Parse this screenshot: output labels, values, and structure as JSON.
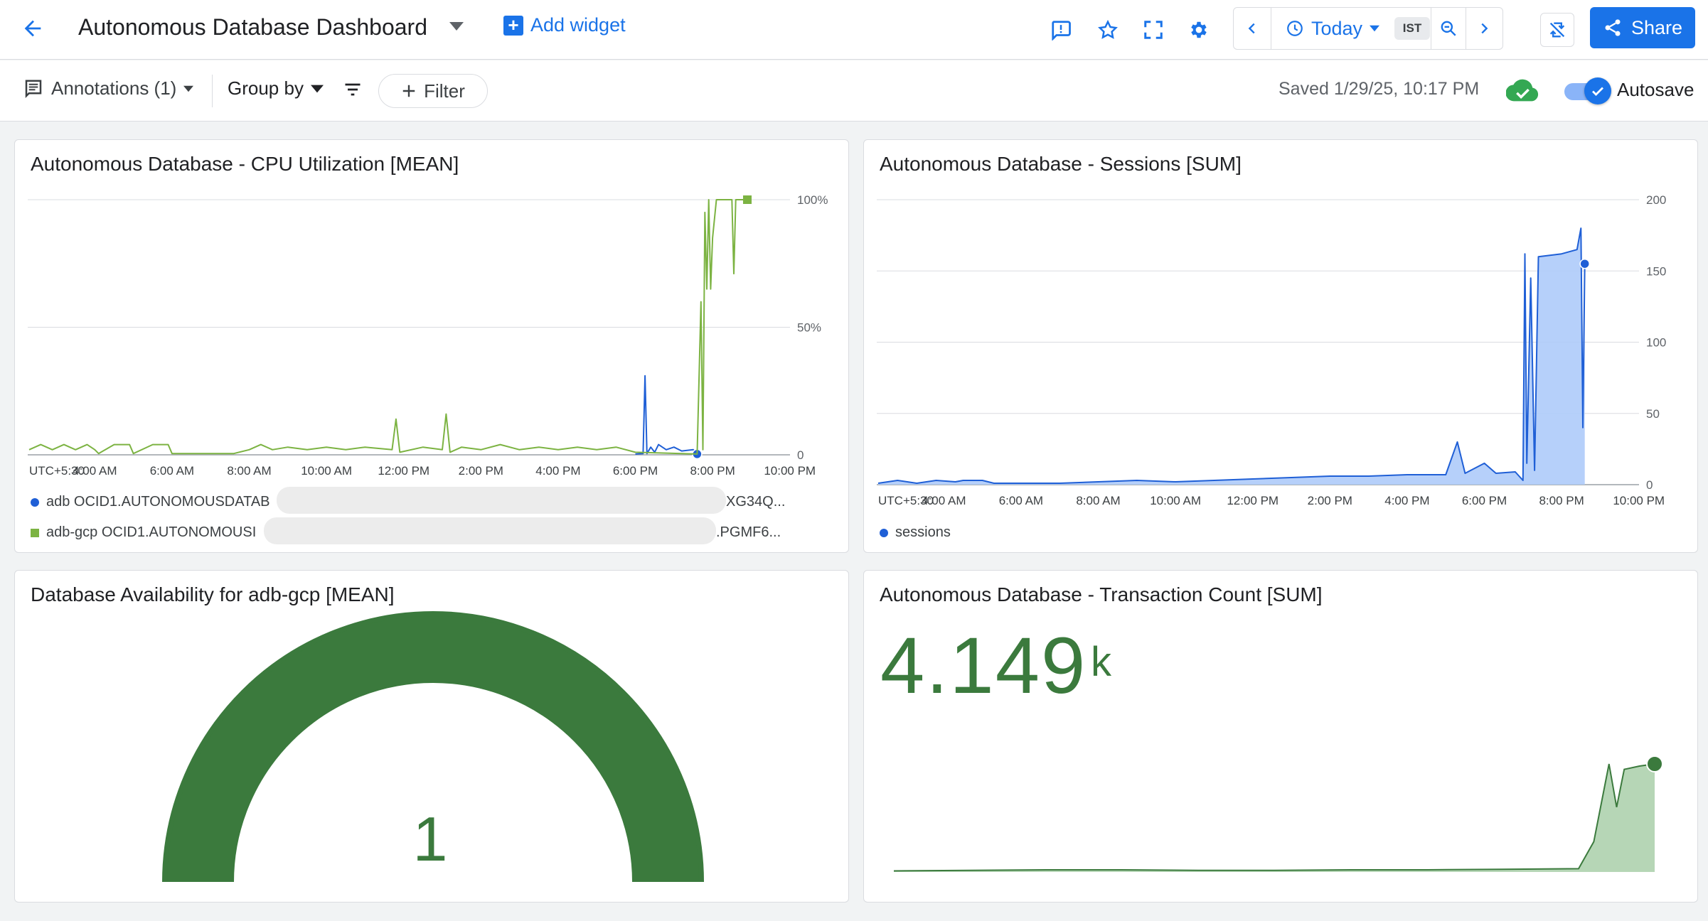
{
  "header": {
    "title": "Autonomous Database Dashboard",
    "add_widget_label": "Add widget",
    "time_range_label": "Today",
    "timezone_chip": "IST",
    "share_label": "Share"
  },
  "toolbar": {
    "annotations_label": "Annotations (1)",
    "group_by_label": "Group by",
    "filter_label": "Filter",
    "saved_text": "Saved 1/29/25, 10:17 PM",
    "autosave_label": "Autosave",
    "autosave_on": true
  },
  "icons": {
    "back": "arrow-left-icon",
    "feedback": "feedback-icon",
    "star": "star-icon",
    "fullscreen": "fullscreen-icon",
    "settings": "gear-icon",
    "clock": "clock-icon",
    "zoom": "zoom-out-icon",
    "link_off": "sync-off-icon",
    "share": "share-icon",
    "cloud": "cloud-done-icon"
  },
  "colors": {
    "accent": "#1a73e8",
    "series_blue": "#1f5fd6",
    "series_green": "#7cb342",
    "metric_green": "#3b7a3d"
  },
  "widgets": {
    "cpu": {
      "title": "Autonomous Database - CPU Utilization [MEAN]",
      "legend": [
        {
          "label_start": "adb OCID1.AUTONOMOUSDATAB",
          "label_end": "XG34Q...",
          "color": "#1f5fd6",
          "marker": "circle"
        },
        {
          "label_start": "adb-gcp OCID1.AUTONOMOUSI",
          "label_end": ".PGMF6...",
          "color": "#7cb342",
          "marker": "square"
        }
      ]
    },
    "sessions": {
      "title": "Autonomous Database - Sessions [SUM]",
      "legend": [
        {
          "label": "sessions",
          "color": "#1f5fd6",
          "marker": "circle"
        }
      ]
    },
    "availability": {
      "title": "Database Availability for adb-gcp [MEAN]",
      "value": "1",
      "gauge_fraction": 1.0
    },
    "transactions": {
      "title": "Autonomous Database - Transaction Count [SUM]",
      "value": "4.149",
      "unit": "k"
    }
  },
  "chart_data": [
    {
      "type": "line",
      "title": "Autonomous Database - CPU Utilization [MEAN]",
      "x_tick_labels": [
        "UTC+5:30",
        "4:00 AM",
        "6:00 AM",
        "8:00 AM",
        "10:00 AM",
        "12:00 PM",
        "2:00 PM",
        "4:00 PM",
        "6:00 PM",
        "8:00 PM",
        "10:00 PM"
      ],
      "y_tick_labels": [
        "100%",
        "50%",
        "0"
      ],
      "ylim": [
        0,
        100
      ],
      "x_hours": [
        2.3,
        22.3
      ],
      "grid": true,
      "series": [
        {
          "name": "adb OCID1.AUTONOMOUSDATAB...XG34Q...",
          "color": "#1f5fd6",
          "points": [
            [
              18.0,
              0.3
            ],
            [
              18.2,
              0.5
            ],
            [
              18.25,
              31
            ],
            [
              18.3,
              0.5
            ],
            [
              18.4,
              3
            ],
            [
              18.5,
              1
            ],
            [
              18.6,
              4
            ],
            [
              18.8,
              2
            ],
            [
              19.0,
              3
            ],
            [
              19.2,
              1.5
            ],
            [
              19.5,
              2
            ],
            [
              19.6,
              0.3
            ]
          ]
        },
        {
          "name": "adb-gcp OCID1.AUTONOMOUSI...PGMF6...",
          "color": "#7cb342",
          "points": [
            [
              2.3,
              2
            ],
            [
              2.6,
              4
            ],
            [
              2.9,
              2
            ],
            [
              3.2,
              4
            ],
            [
              3.5,
              2
            ],
            [
              3.8,
              4
            ],
            [
              4.0,
              2
            ],
            [
              4.1,
              0.5
            ],
            [
              4.5,
              4
            ],
            [
              4.9,
              4
            ],
            [
              5.0,
              0.5
            ],
            [
              5.5,
              4
            ],
            [
              5.9,
              4
            ],
            [
              6.0,
              0.5
            ],
            [
              7.6,
              0.5
            ],
            [
              8.0,
              2
            ],
            [
              8.3,
              4
            ],
            [
              8.6,
              2
            ],
            [
              9.0,
              3
            ],
            [
              9.5,
              2
            ],
            [
              10.0,
              3
            ],
            [
              10.5,
              2
            ],
            [
              11.0,
              3
            ],
            [
              11.7,
              2
            ],
            [
              11.8,
              14
            ],
            [
              11.9,
              1
            ],
            [
              12.5,
              3
            ],
            [
              13.0,
              2
            ],
            [
              13.1,
              16
            ],
            [
              13.2,
              1
            ],
            [
              13.5,
              3
            ],
            [
              14.0,
              2
            ],
            [
              14.5,
              4
            ],
            [
              15.0,
              2
            ],
            [
              15.5,
              3
            ],
            [
              16.0,
              2
            ],
            [
              16.5,
              3
            ],
            [
              17.0,
              2
            ],
            [
              17.5,
              3
            ],
            [
              18.0,
              1
            ],
            [
              19.6,
              0.3
            ],
            [
              19.7,
              60
            ],
            [
              19.75,
              2
            ],
            [
              19.8,
              95
            ],
            [
              19.85,
              65
            ],
            [
              19.9,
              100
            ],
            [
              19.95,
              65
            ],
            [
              20.0,
              85
            ],
            [
              20.1,
              100
            ],
            [
              20.5,
              100
            ],
            [
              20.55,
              71
            ],
            [
              20.6,
              100
            ],
            [
              20.9,
              100
            ]
          ]
        }
      ]
    },
    {
      "type": "area",
      "title": "Autonomous Database - Sessions [SUM]",
      "x_tick_labels": [
        "UTC+5:30",
        "4:00 AM",
        "6:00 AM",
        "8:00 AM",
        "10:00 AM",
        "12:00 PM",
        "2:00 PM",
        "4:00 PM",
        "6:00 PM",
        "8:00 PM",
        "10:00 PM"
      ],
      "y_tick_labels": [
        "200",
        "150",
        "100",
        "50",
        "0"
      ],
      "ylim": [
        0,
        200
      ],
      "x_hours": [
        2.3,
        22.3
      ],
      "grid": true,
      "series": [
        {
          "name": "sessions",
          "color": "#1f5fd6",
          "points": [
            [
              2.3,
              1
            ],
            [
              2.8,
              3
            ],
            [
              3.3,
              1
            ],
            [
              3.8,
              3
            ],
            [
              4.3,
              2
            ],
            [
              4.5,
              3
            ],
            [
              5.0,
              3
            ],
            [
              5.3,
              1
            ],
            [
              6.0,
              1
            ],
            [
              7.0,
              1
            ],
            [
              8.0,
              2
            ],
            [
              9.0,
              3
            ],
            [
              10.0,
              2
            ],
            [
              11.0,
              3
            ],
            [
              12.0,
              4
            ],
            [
              13.0,
              5
            ],
            [
              14.0,
              6
            ],
            [
              15.0,
              6
            ],
            [
              16.0,
              7
            ],
            [
              17.0,
              7
            ],
            [
              17.3,
              30
            ],
            [
              17.5,
              8
            ],
            [
              18.0,
              15
            ],
            [
              18.3,
              8
            ],
            [
              18.8,
              9
            ],
            [
              19.0,
              3
            ],
            [
              19.05,
              162
            ],
            [
              19.1,
              15
            ],
            [
              19.2,
              145
            ],
            [
              19.3,
              10
            ],
            [
              19.4,
              160
            ],
            [
              20.0,
              162
            ],
            [
              20.4,
              165
            ],
            [
              20.5,
              180
            ],
            [
              20.55,
              40
            ],
            [
              20.6,
              155
            ]
          ]
        }
      ]
    },
    {
      "type": "area",
      "title": "Autonomous Database - Transaction Count [SUM]",
      "series": [
        {
          "name": "",
          "color": "#3b7a3d",
          "points": [
            [
              0.0,
              1
            ],
            [
              0.1,
              1.5
            ],
            [
              0.2,
              2
            ],
            [
              0.3,
              2
            ],
            [
              0.4,
              1.5
            ],
            [
              0.5,
              1.5
            ],
            [
              0.6,
              2
            ],
            [
              0.7,
              2
            ],
            [
              0.8,
              2.5
            ],
            [
              0.9,
              3
            ],
            [
              0.92,
              28
            ],
            [
              0.94,
              100
            ],
            [
              0.95,
              60
            ],
            [
              0.96,
              95
            ],
            [
              0.98,
              98
            ],
            [
              1.0,
              100
            ]
          ]
        }
      ]
    }
  ]
}
